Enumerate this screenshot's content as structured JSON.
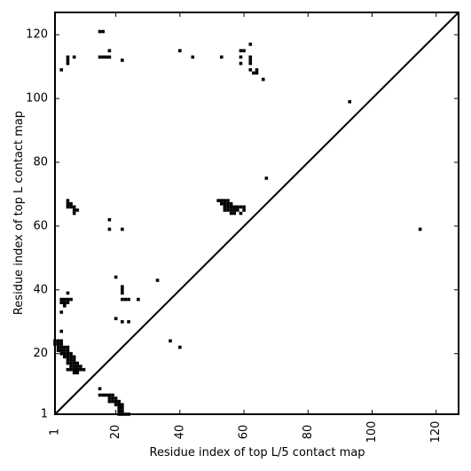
{
  "chart_data": {
    "type": "heatmap",
    "title": "",
    "xlabel": "Residue index of top L/5 contact map",
    "ylabel": "Residue index of top L contact map",
    "xlim": [
      1,
      127
    ],
    "ylim": [
      1,
      127
    ],
    "x_ticks": [
      1,
      20,
      40,
      60,
      80,
      100,
      120
    ],
    "y_ticks": [
      1,
      20,
      40,
      60,
      80,
      100,
      120
    ],
    "grid": false,
    "diagonal_line": true,
    "point_color": "#000000",
    "upper_triangle_contacts": [
      [
        15,
        121
      ],
      [
        16,
        121
      ],
      [
        15,
        113
      ],
      [
        16,
        113
      ],
      [
        17,
        113
      ],
      [
        18,
        115
      ],
      [
        18,
        113
      ],
      [
        22,
        112
      ],
      [
        5,
        113
      ],
      [
        5,
        112
      ],
      [
        5,
        111
      ],
      [
        7,
        113
      ],
      [
        3,
        109
      ],
      [
        40,
        115
      ],
      [
        44,
        113
      ],
      [
        53,
        113
      ],
      [
        59,
        115
      ],
      [
        60,
        115
      ],
      [
        59,
        113
      ],
      [
        59,
        111
      ],
      [
        62,
        117
      ],
      [
        62,
        113
      ],
      [
        62,
        112
      ],
      [
        62,
        111
      ],
      [
        62,
        109
      ],
      [
        63,
        108
      ],
      [
        64,
        108
      ],
      [
        64,
        109
      ],
      [
        66,
        106
      ],
      [
        93,
        99
      ],
      [
        5,
        68
      ],
      [
        5,
        67
      ],
      [
        5,
        66
      ],
      [
        6,
        67
      ],
      [
        6,
        66
      ],
      [
        7,
        66
      ],
      [
        7,
        65
      ],
      [
        7,
        64
      ],
      [
        8,
        65
      ],
      [
        52,
        68
      ],
      [
        53,
        68
      ],
      [
        54,
        68
      ],
      [
        55,
        68
      ],
      [
        53,
        67
      ],
      [
        54,
        67
      ],
      [
        55,
        67
      ],
      [
        56,
        67
      ],
      [
        54,
        66
      ],
      [
        55,
        66
      ],
      [
        56,
        66
      ],
      [
        57,
        66
      ],
      [
        58,
        66
      ],
      [
        59,
        66
      ],
      [
        60,
        66
      ],
      [
        54,
        65
      ],
      [
        55,
        65
      ],
      [
        56,
        65
      ],
      [
        57,
        65
      ],
      [
        58,
        65
      ],
      [
        60,
        65
      ],
      [
        56,
        64
      ],
      [
        57,
        64
      ],
      [
        59,
        64
      ],
      [
        67,
        75
      ],
      [
        18,
        62
      ],
      [
        18,
        59
      ],
      [
        22,
        59
      ],
      [
        20,
        44
      ],
      [
        33,
        43
      ],
      [
        22,
        41
      ],
      [
        22,
        40
      ],
      [
        22,
        39
      ],
      [
        22,
        37
      ],
      [
        23,
        37
      ],
      [
        24,
        37
      ],
      [
        27,
        37
      ],
      [
        20,
        31
      ],
      [
        22,
        30
      ],
      [
        24,
        30
      ],
      [
        5,
        39
      ],
      [
        3,
        37
      ],
      [
        4,
        37
      ],
      [
        5,
        37
      ],
      [
        6,
        37
      ],
      [
        3,
        36
      ],
      [
        4,
        36
      ],
      [
        5,
        36
      ],
      [
        4,
        35
      ],
      [
        3,
        33
      ],
      [
        3,
        27
      ],
      [
        1,
        24
      ],
      [
        2,
        24
      ],
      [
        3,
        24
      ],
      [
        1,
        23
      ],
      [
        2,
        23
      ],
      [
        3,
        23
      ],
      [
        2,
        22
      ],
      [
        3,
        22
      ],
      [
        4,
        22
      ],
      [
        5,
        22
      ],
      [
        2,
        21
      ],
      [
        3,
        21
      ],
      [
        4,
        21
      ],
      [
        5,
        21
      ],
      [
        3,
        20
      ],
      [
        4,
        20
      ],
      [
        5,
        20
      ],
      [
        6,
        20
      ],
      [
        4,
        19
      ],
      [
        5,
        19
      ],
      [
        6,
        19
      ],
      [
        7,
        19
      ],
      [
        5,
        18
      ],
      [
        6,
        18
      ],
      [
        7,
        18
      ],
      [
        5,
        17
      ],
      [
        6,
        17
      ],
      [
        7,
        17
      ],
      [
        8,
        17
      ],
      [
        6,
        16
      ],
      [
        7,
        16
      ],
      [
        8,
        16
      ],
      [
        9,
        16
      ],
      [
        5,
        15
      ],
      [
        6,
        15
      ],
      [
        7,
        15
      ],
      [
        8,
        15
      ],
      [
        9,
        15
      ],
      [
        10,
        15
      ],
      [
        7,
        14
      ],
      [
        8,
        14
      ],
      [
        15,
        9
      ],
      [
        15,
        7
      ],
      [
        16,
        7
      ],
      [
        17,
        7
      ],
      [
        18,
        7
      ],
      [
        19,
        7
      ],
      [
        18,
        6
      ],
      [
        19,
        6
      ],
      [
        20,
        6
      ],
      [
        18,
        5
      ],
      [
        19,
        5
      ],
      [
        20,
        5
      ],
      [
        21,
        5
      ],
      [
        20,
        4
      ],
      [
        21,
        4
      ],
      [
        22,
        4
      ],
      [
        21,
        3
      ],
      [
        22,
        3
      ],
      [
        21,
        2
      ],
      [
        22,
        2
      ],
      [
        21,
        1
      ],
      [
        22,
        1
      ],
      [
        23,
        1
      ],
      [
        24,
        1
      ]
    ],
    "lower_triangle_contacts": [
      [
        37,
        24
      ],
      [
        40,
        22
      ],
      [
        115,
        59
      ]
    ]
  }
}
